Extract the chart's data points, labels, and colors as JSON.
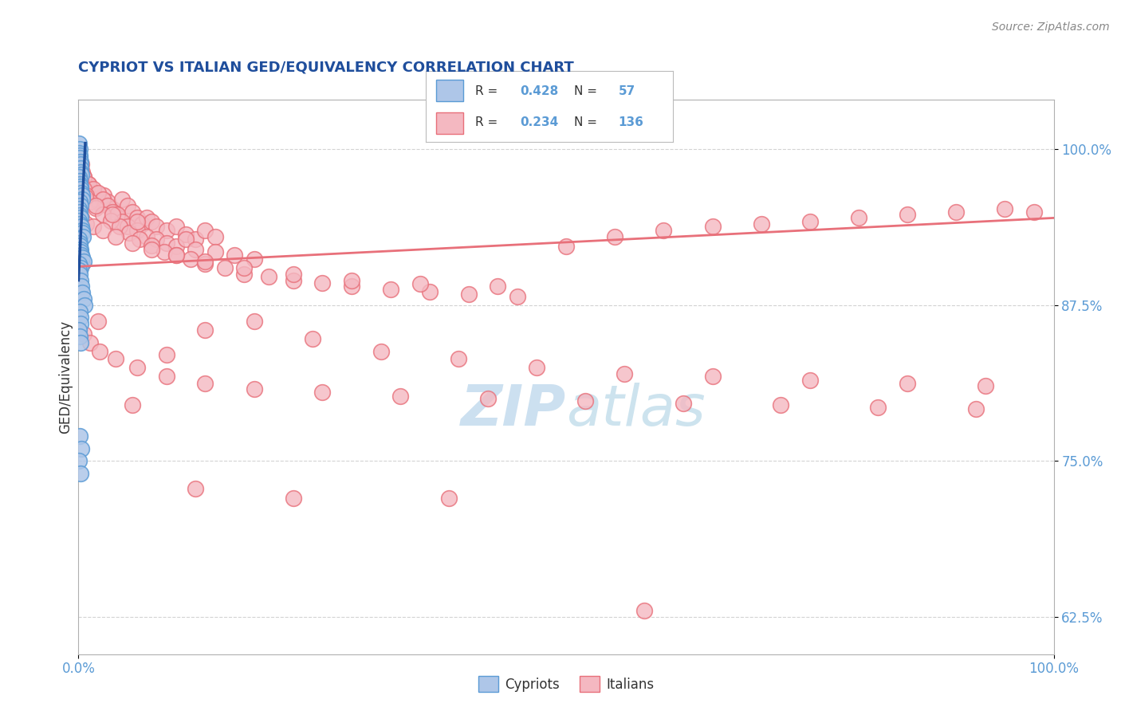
{
  "title": "CYPRIOT VS ITALIAN GED/EQUIVALENCY CORRELATION CHART",
  "ylabel": "GED/Equivalency",
  "source": "Source: ZipAtlas.com",
  "xlim": [
    0,
    1.0
  ],
  "ylim": [
    0.595,
    1.04
  ],
  "yticks": [
    0.625,
    0.75,
    0.875,
    1.0
  ],
  "ytick_labels": [
    "62.5%",
    "75.0%",
    "87.5%",
    "100.0%"
  ],
  "xtick_labels": [
    "0.0%",
    "100.0%"
  ],
  "blue_R": 0.428,
  "blue_N": 57,
  "pink_R": 0.234,
  "pink_N": 136,
  "blue_color": "#aec6e8",
  "blue_edge": "#5b9bd5",
  "pink_color": "#f4b8c1",
  "pink_edge": "#e8707a",
  "blue_line_color": "#1f4e9c",
  "pink_line_color": "#e8707a",
  "title_color": "#1f4e9c",
  "axis_color": "#5b9bd5",
  "grid_color": "#c8c8c8",
  "watermark_color": "#cce0f0",
  "blue_line_x0": 0.0,
  "blue_line_y0": 0.895,
  "blue_line_x1": 0.007,
  "blue_line_y1": 1.005,
  "pink_line_x0": 0.0,
  "pink_line_y0": 0.906,
  "pink_line_x1": 1.0,
  "pink_line_y1": 0.945,
  "blue_scatter_x": [
    0.0005,
    0.001,
    0.0008,
    0.0012,
    0.0015,
    0.0018,
    0.002,
    0.0022,
    0.0025,
    0.003,
    0.0008,
    0.001,
    0.0015,
    0.002,
    0.0025,
    0.003,
    0.0035,
    0.004,
    0.0012,
    0.0018,
    0.0005,
    0.001,
    0.0015,
    0.002,
    0.0008,
    0.0012,
    0.003,
    0.0035,
    0.004,
    0.0045,
    0.0005,
    0.001,
    0.0015,
    0.002,
    0.0025,
    0.003,
    0.004,
    0.005,
    0.0008,
    0.0018,
    0.0005,
    0.001,
    0.002,
    0.003,
    0.004,
    0.005,
    0.006,
    0.0012,
    0.0018,
    0.0025,
    0.0005,
    0.001,
    0.002,
    0.0015,
    0.003,
    0.0008,
    0.0022
  ],
  "blue_scatter_y": [
    1.005,
    1.0,
    0.997,
    0.995,
    0.993,
    0.99,
    0.988,
    0.985,
    0.982,
    0.98,
    0.978,
    0.975,
    0.972,
    0.97,
    0.968,
    0.965,
    0.963,
    0.96,
    0.958,
    0.955,
    0.952,
    0.95,
    0.947,
    0.945,
    0.943,
    0.94,
    0.938,
    0.935,
    0.933,
    0.93,
    0.928,
    0.925,
    0.923,
    0.92,
    0.918,
    0.915,
    0.913,
    0.91,
    0.908,
    0.905,
    0.903,
    0.9,
    0.895,
    0.89,
    0.885,
    0.88,
    0.875,
    0.87,
    0.865,
    0.86,
    0.855,
    0.85,
    0.845,
    0.77,
    0.76,
    0.75,
    0.74
  ],
  "pink_scatter_x": [
    0.001,
    0.002,
    0.003,
    0.004,
    0.005,
    0.006,
    0.008,
    0.01,
    0.012,
    0.015,
    0.018,
    0.022,
    0.026,
    0.03,
    0.035,
    0.04,
    0.045,
    0.05,
    0.055,
    0.06,
    0.065,
    0.07,
    0.075,
    0.08,
    0.09,
    0.1,
    0.11,
    0.12,
    0.13,
    0.14,
    0.005,
    0.01,
    0.015,
    0.02,
    0.025,
    0.03,
    0.035,
    0.04,
    0.045,
    0.05,
    0.06,
    0.07,
    0.08,
    0.09,
    0.1,
    0.11,
    0.12,
    0.14,
    0.16,
    0.18,
    0.002,
    0.005,
    0.008,
    0.012,
    0.018,
    0.025,
    0.033,
    0.042,
    0.052,
    0.063,
    0.075,
    0.088,
    0.1,
    0.115,
    0.13,
    0.15,
    0.17,
    0.195,
    0.22,
    0.25,
    0.28,
    0.32,
    0.36,
    0.4,
    0.45,
    0.5,
    0.55,
    0.6,
    0.65,
    0.7,
    0.75,
    0.8,
    0.85,
    0.9,
    0.95,
    0.98,
    0.003,
    0.008,
    0.015,
    0.025,
    0.038,
    0.055,
    0.075,
    0.1,
    0.13,
    0.17,
    0.22,
    0.28,
    0.35,
    0.43,
    0.007,
    0.018,
    0.035,
    0.06,
    0.09,
    0.13,
    0.18,
    0.24,
    0.31,
    0.39,
    0.47,
    0.56,
    0.65,
    0.75,
    0.85,
    0.93,
    0.005,
    0.012,
    0.022,
    0.038,
    0.06,
    0.09,
    0.13,
    0.18,
    0.25,
    0.33,
    0.42,
    0.52,
    0.62,
    0.72,
    0.82,
    0.92,
    0.004,
    0.02,
    0.055,
    0.12,
    0.22,
    0.38,
    0.58
  ],
  "pink_scatter_y": [
    0.99,
    0.985,
    0.988,
    0.982,
    0.978,
    0.975,
    0.97,
    0.972,
    0.968,
    0.965,
    0.96,
    0.957,
    0.963,
    0.958,
    0.952,
    0.948,
    0.96,
    0.955,
    0.95,
    0.945,
    0.94,
    0.945,
    0.942,
    0.938,
    0.935,
    0.938,
    0.932,
    0.928,
    0.935,
    0.93,
    0.978,
    0.972,
    0.968,
    0.965,
    0.96,
    0.955,
    0.95,
    0.948,
    0.942,
    0.938,
    0.935,
    0.93,
    0.928,
    0.925,
    0.922,
    0.928,
    0.92,
    0.918,
    0.915,
    0.912,
    0.975,
    0.968,
    0.963,
    0.958,
    0.953,
    0.948,
    0.943,
    0.938,
    0.933,
    0.928,
    0.923,
    0.918,
    0.915,
    0.912,
    0.908,
    0.905,
    0.9,
    0.898,
    0.895,
    0.893,
    0.89,
    0.888,
    0.886,
    0.884,
    0.882,
    0.922,
    0.93,
    0.935,
    0.938,
    0.94,
    0.942,
    0.945,
    0.948,
    0.95,
    0.952,
    0.95,
    0.945,
    0.94,
    0.938,
    0.935,
    0.93,
    0.925,
    0.92,
    0.915,
    0.91,
    0.905,
    0.9,
    0.895,
    0.892,
    0.89,
    0.962,
    0.955,
    0.948,
    0.942,
    0.835,
    0.855,
    0.862,
    0.848,
    0.838,
    0.832,
    0.825,
    0.82,
    0.818,
    0.815,
    0.812,
    0.81,
    0.852,
    0.845,
    0.838,
    0.832,
    0.825,
    0.818,
    0.812,
    0.808,
    0.805,
    0.802,
    0.8,
    0.798,
    0.796,
    0.795,
    0.793,
    0.792,
    0.908,
    0.862,
    0.795,
    0.728,
    0.72,
    0.72,
    0.63
  ]
}
